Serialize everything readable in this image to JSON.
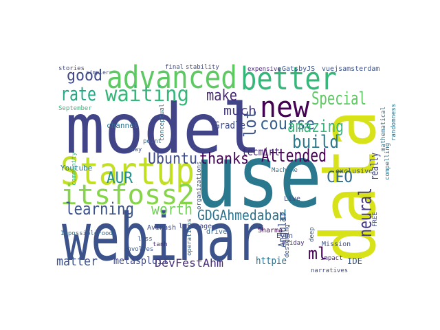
{
  "words": [
    {
      "text": "model",
      "color": "#414487"
    },
    {
      "text": "use",
      "color": "#2a788e"
    },
    {
      "text": "webinar",
      "color": "#3b528b"
    },
    {
      "text": "data",
      "color": "#d8e219"
    },
    {
      "text": "Startup",
      "color": "#c2df23"
    },
    {
      "text": "advanced",
      "color": "#5ec962"
    },
    {
      "text": "better",
      "color": "#35b779"
    },
    {
      "text": "itsfoss2",
      "color": "#86d549"
    },
    {
      "text": "new",
      "color": "#440154"
    },
    {
      "text": "waiting",
      "color": "#35b779"
    },
    {
      "text": "rate",
      "color": "#22a884"
    },
    {
      "text": "good",
      "color": "#3e4989"
    },
    {
      "text": "make",
      "color": "#482878"
    },
    {
      "text": "much",
      "color": "#443983"
    },
    {
      "text": "course",
      "color": "#355f8d"
    },
    {
      "text": "Special",
      "color": "#5ec962"
    },
    {
      "text": "lot",
      "color": "#3b528b"
    },
    {
      "text": "amazing",
      "color": "#35b779"
    },
    {
      "text": "build",
      "color": "#2a788e"
    },
    {
      "text": "CEO",
      "color": "#31688e"
    },
    {
      "text": "really",
      "color": "#404688"
    },
    {
      "text": "neural",
      "color": "#443a83"
    },
    {
      "text": "Attended",
      "color": "#440154"
    },
    {
      "text": "thanks",
      "color": "#440154"
    },
    {
      "text": "Ubuntu",
      "color": "#3e4a89"
    },
    {
      "text": "AUR",
      "color": "#21918c"
    },
    {
      "text": "worth",
      "color": "#73d056"
    },
    {
      "text": "learning",
      "color": "#3b528b"
    },
    {
      "text": "GDGAhmedabad",
      "color": "#2c728e"
    },
    {
      "text": "Angular",
      "color": "#3b528b"
    },
    {
      "text": "ml",
      "color": "#440154"
    },
    {
      "text": "DevFestAhm",
      "color": "#472d7b"
    },
    {
      "text": "metasploit",
      "color": "#3e4989"
    },
    {
      "text": "matter",
      "color": "#3b528b"
    },
    {
      "text": "httpie",
      "color": "#2d708e"
    },
    {
      "text": "IDE",
      "color": "#38588c"
    },
    {
      "text": "tecmint",
      "color": "#482878"
    },
    {
      "text": "Gradle",
      "color": "#3e4989"
    },
    {
      "text": "Youtube",
      "color": "#2a788e"
    },
    {
      "text": "channel",
      "color": "#2c728e"
    },
    {
      "text": "GatsbyJS",
      "color": "#3b528b"
    },
    {
      "text": "vuejsamsterdam",
      "color": "#3b528b"
    },
    {
      "text": "stories",
      "color": "#3e4989"
    },
    {
      "text": "expensive",
      "color": "#482878"
    },
    {
      "text": "Live",
      "color": "#3e4989"
    },
    {
      "text": "Mission",
      "color": "#3b528b"
    },
    {
      "text": "Evan",
      "color": "#3e4989"
    },
    {
      "text": "Friday",
      "color": "#472d7b"
    },
    {
      "text": "Sharma",
      "color": "#440154"
    },
    {
      "text": "Machine",
      "color": "#2c728e"
    },
    {
      "text": "exclusive",
      "color": "#3b528b"
    },
    {
      "text": "driven",
      "color": "#31688e"
    },
    {
      "text": "leverage",
      "color": "#3e4989"
    },
    {
      "text": "Avinash",
      "color": "#3e4989"
    },
    {
      "text": "tanh",
      "color": "#482878"
    },
    {
      "text": "ImpossibleFoods",
      "color": "#31688e"
    },
    {
      "text": "September",
      "color": "#35b779"
    },
    {
      "text": "conceptual",
      "color": "#2c728e"
    },
    {
      "text": "operations",
      "color": "#31688e"
    },
    {
      "text": "organizations",
      "color": "#3b528b"
    },
    {
      "text": "community",
      "color": "#35b779"
    },
    {
      "text": "narratives",
      "color": "#3e4989"
    },
    {
      "text": "deep",
      "color": "#3b528b"
    },
    {
      "text": "impact",
      "color": "#482878"
    },
    {
      "text": "designing",
      "color": "#3b528b"
    },
    {
      "text": "randomness",
      "color": "#2c728e"
    },
    {
      "text": "mathematical",
      "color": "#2c728e"
    },
    {
      "text": "FREE",
      "color": "#3e4989"
    },
    {
      "text": "compelling",
      "color": "#2c728e"
    },
    {
      "text": "less",
      "color": "#3b528b"
    },
    {
      "text": "involves",
      "color": "#3b528b"
    },
    {
      "text": "point",
      "color": "#31688e"
    },
    {
      "text": "may",
      "color": "#3b528b"
    },
    {
      "text": "stability",
      "color": "#3e4989"
    },
    {
      "text": "final",
      "color": "#3e4989"
    },
    {
      "text": "simpler",
      "color": "#3e4989"
    }
  ]
}
